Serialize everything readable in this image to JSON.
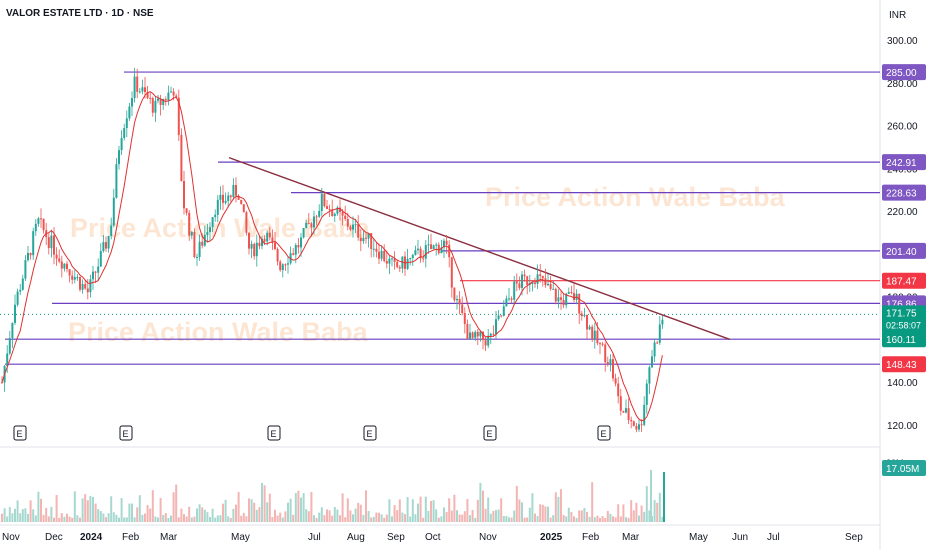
{
  "header": {
    "symbol": "VALOR ESTATE LTD · 1D · NSE",
    "currency": "INR"
  },
  "watermark": "Price Action Wale Baba",
  "chart_data": {
    "type": "candlestick",
    "y_ticks": [
      300,
      280,
      260,
      240,
      220,
      200,
      180,
      140,
      120
    ],
    "ylim": [
      113,
      304
    ],
    "x_labels": [
      "Nov",
      "Dec",
      "2024",
      "Feb",
      "Mar",
      "May",
      "Jul",
      "Aug",
      "Sep",
      "Oct",
      "Nov",
      "2025",
      "Feb",
      "Mar",
      "May",
      "Jun",
      "Jul",
      "Sep"
    ],
    "bold_x_labels": [
      "2024",
      "2025"
    ],
    "levels": [
      {
        "value": 285.0,
        "label": "285.00",
        "color": "#6a3fc1"
      },
      {
        "value": 242.91,
        "label": "242.91",
        "color": "#6a3fc1"
      },
      {
        "value": 228.63,
        "label": "228.63",
        "color": "#6a3fc1"
      },
      {
        "value": 201.4,
        "label": "201.40",
        "color": "#6a3fc1"
      },
      {
        "value": 187.47,
        "label": "187.47",
        "color": "#f23645"
      },
      {
        "value": 176.86,
        "label": "176.86",
        "color": "#6a3fc1"
      },
      {
        "value": 160.11,
        "label": "160.11",
        "color": "#6a3fc1"
      },
      {
        "value": 148.43,
        "label": "148.43",
        "color": "#6a3fc1"
      }
    ],
    "price_tags": [
      {
        "value": 285.0,
        "label": "285.00",
        "color": "#7e57c2"
      },
      {
        "value": 242.91,
        "label": "242.91",
        "color": "#7e57c2"
      },
      {
        "value": 228.63,
        "label": "228.63",
        "color": "#7e57c2"
      },
      {
        "value": 201.4,
        "label": "201.40",
        "color": "#7e57c2"
      },
      {
        "value": 187.47,
        "label": "187.47",
        "color": "#f23645"
      },
      {
        "value": 176.86,
        "label": "176.86",
        "color": "#7e57c2"
      },
      {
        "value": 160.11,
        "label": "160.11",
        "color": "#089981"
      },
      {
        "value": 148.43,
        "label": "148.43",
        "color": "#f23645"
      }
    ],
    "last_price": {
      "value": 171.75,
      "label": "171.75",
      "countdown": "02:58:07",
      "color": "#089981"
    },
    "trendline": {
      "from": {
        "date": "2024-04-20",
        "value": 245
      },
      "to": {
        "date": "2025-04-30",
        "value": 160
      },
      "color": "#8b2e3f"
    },
    "earnings_markers": [
      "Nov",
      "Feb",
      "Jun",
      "Sep",
      "Dec",
      "Mar"
    ],
    "series_points": [
      {
        "date": "2023-11",
        "value": 140
      },
      {
        "date": "2023-11",
        "value": 175
      },
      {
        "date": "2023-12",
        "value": 215
      },
      {
        "date": "2023-12",
        "value": 198
      },
      {
        "date": "2023-12",
        "value": 182
      },
      {
        "date": "2024-01",
        "value": 210
      },
      {
        "date": "2024-01",
        "value": 255
      },
      {
        "date": "2024-02",
        "value": 280
      },
      {
        "date": "2024-02",
        "value": 268
      },
      {
        "date": "2024-03",
        "value": 275
      },
      {
        "date": "2024-03",
        "value": 225
      },
      {
        "date": "2024-04",
        "value": 198
      },
      {
        "date": "2024-04",
        "value": 230
      },
      {
        "date": "2024-05",
        "value": 200
      },
      {
        "date": "2024-05",
        "value": 210
      },
      {
        "date": "2024-06",
        "value": 195
      },
      {
        "date": "2024-06",
        "value": 205
      },
      {
        "date": "2024-07",
        "value": 225
      },
      {
        "date": "2024-08",
        "value": 215
      },
      {
        "date": "2024-08",
        "value": 205
      },
      {
        "date": "2024-09",
        "value": 193
      },
      {
        "date": "2024-10",
        "value": 200
      },
      {
        "date": "2024-10",
        "value": 180
      },
      {
        "date": "2024-11",
        "value": 160
      },
      {
        "date": "2024-11",
        "value": 168
      },
      {
        "date": "2024-12",
        "value": 185
      },
      {
        "date": "2024-12",
        "value": 178
      },
      {
        "date": "2025-01",
        "value": 180
      },
      {
        "date": "2025-01",
        "value": 160
      },
      {
        "date": "2025-02",
        "value": 150
      },
      {
        "date": "2025-02",
        "value": 128
      },
      {
        "date": "2025-03",
        "value": 118
      },
      {
        "date": "2025-03",
        "value": 150
      },
      {
        "date": "2025-03",
        "value": 172
      }
    ],
    "volume": {
      "last_label": "17.05M",
      "scale_label": "20M",
      "color": "#26a69a"
    }
  }
}
